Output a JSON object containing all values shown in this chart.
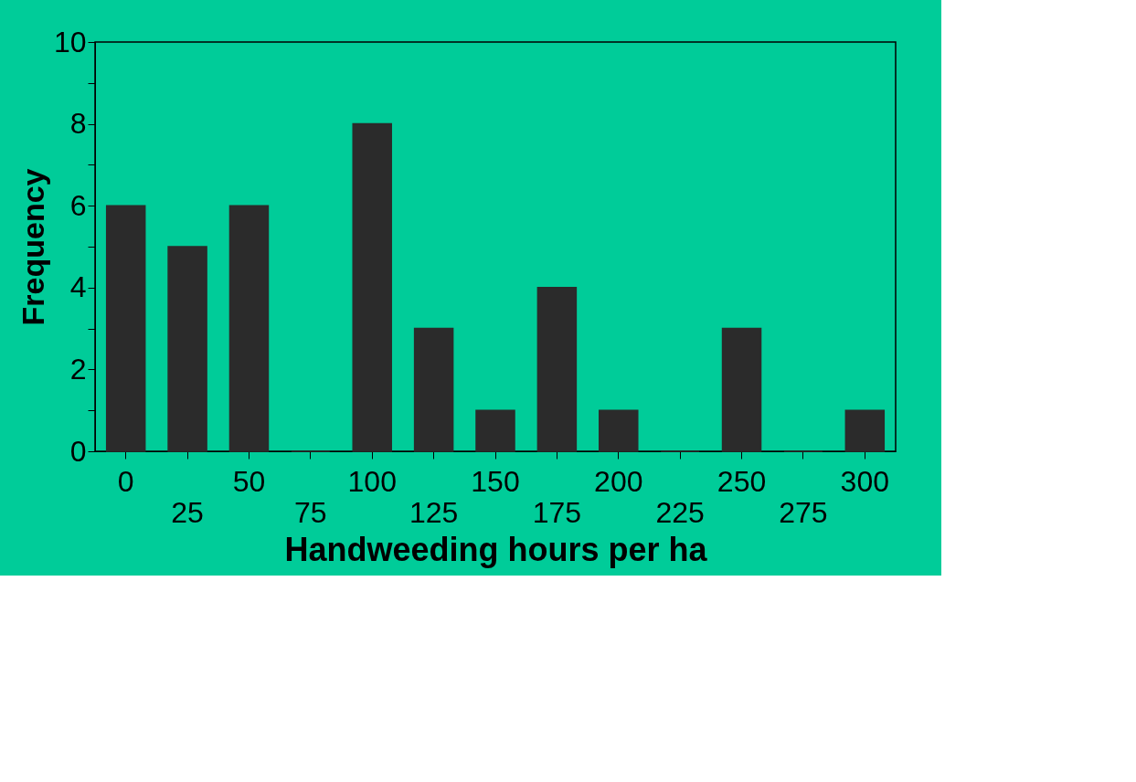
{
  "chart_data": {
    "type": "bar",
    "xlabel": "Handweeding hours per ha",
    "ylabel": "Frequency",
    "categories": [
      "0",
      "25",
      "50",
      "75",
      "100",
      "125",
      "150",
      "175",
      "200",
      "225",
      "250",
      "275",
      "300"
    ],
    "values": [
      6,
      5,
      6,
      0,
      8,
      3,
      1,
      4,
      1,
      0,
      3,
      0,
      1
    ],
    "color": "#2b2b2b",
    "ylim": [
      0,
      10
    ],
    "yticks": [
      0,
      {
        "value": 1,
        "label": null
      },
      2,
      {
        "value": 3,
        "label": null
      },
      4,
      {
        "value": 5,
        "label": null
      },
      6,
      {
        "value": 7,
        "label": null
      },
      8,
      {
        "value": 9,
        "label": null
      },
      10
    ],
    "grid": false
  }
}
